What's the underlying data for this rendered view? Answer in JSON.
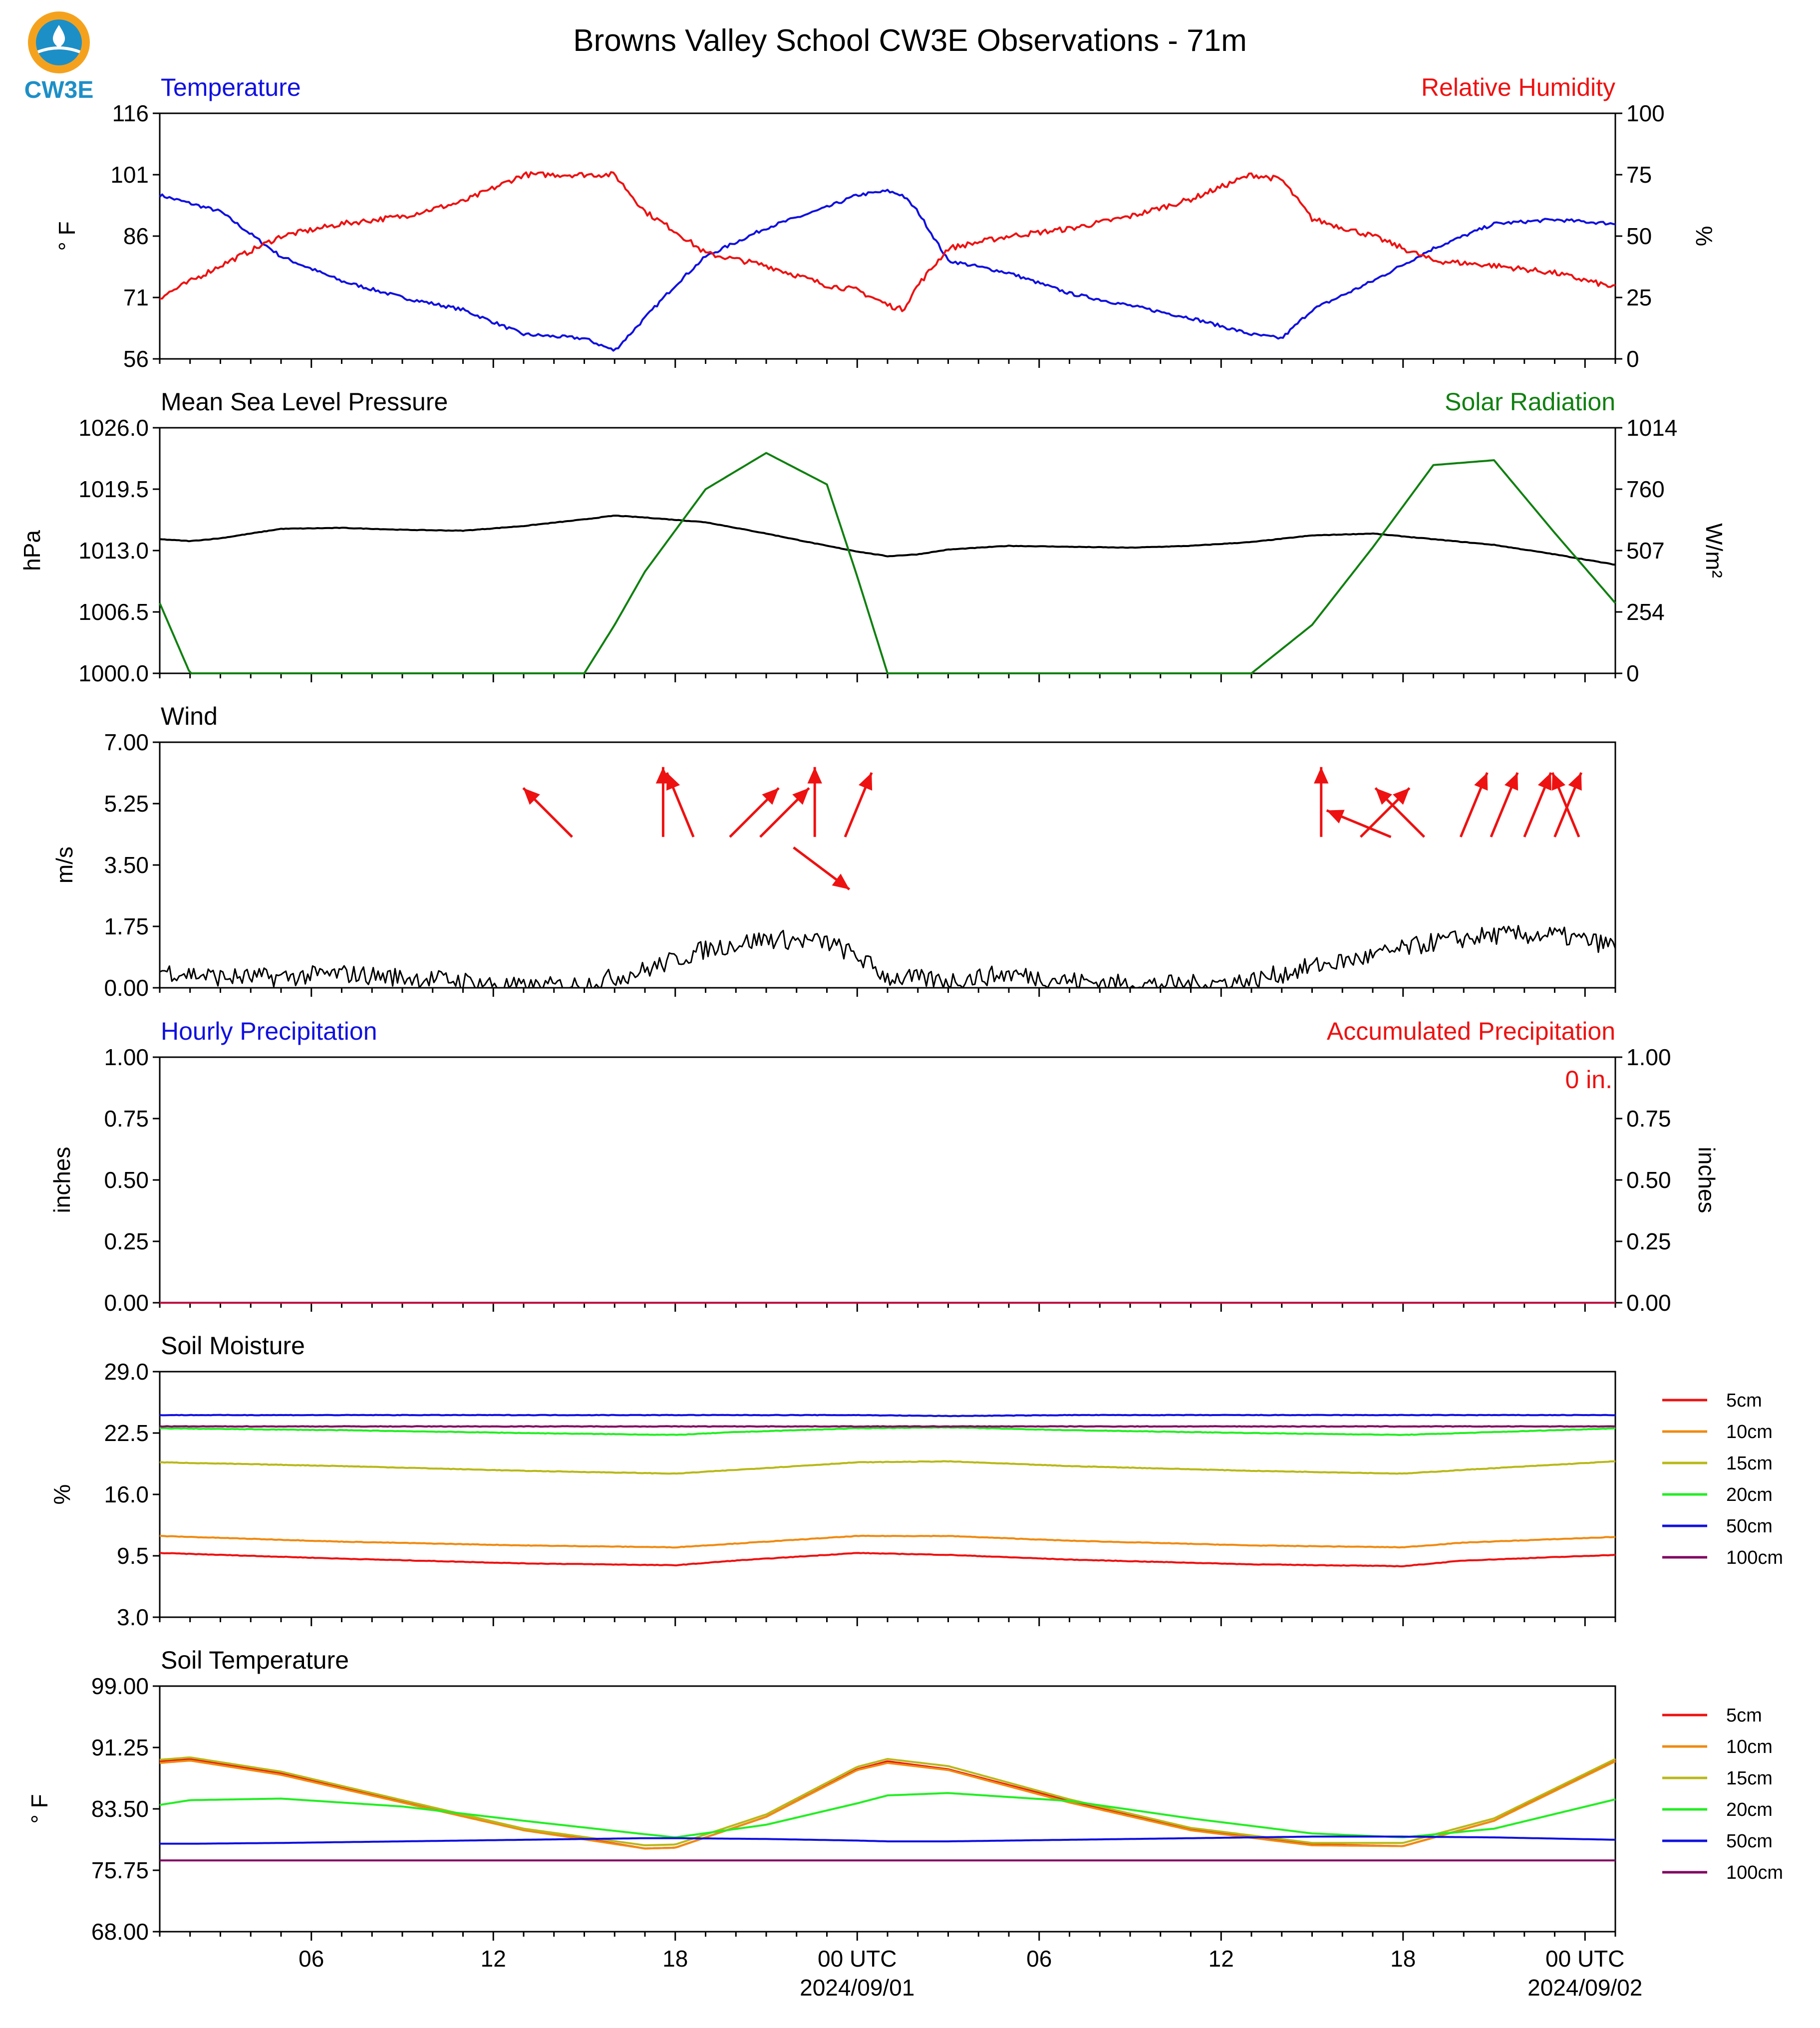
{
  "title": "Browns Valley School CW3E Observations - 71m",
  "logo_text": "CW3E",
  "colors": {
    "temp": "#1010e0",
    "rh": "#ee1111",
    "pressure": "#000000",
    "solar": "#108010",
    "wind": "#000000",
    "arrow": "#ee1111",
    "accum_label": "#ee1111"
  },
  "x_axis": {
    "range_hours": [
      0,
      48
    ],
    "tick_labels": [
      {
        "h": 5,
        "label": "06"
      },
      {
        "h": 11,
        "label": "12"
      },
      {
        "h": 17,
        "label": "18"
      },
      {
        "h": 23,
        "label": "00 UTC",
        "sub": "2024/09/01"
      },
      {
        "h": 29,
        "label": "06"
      },
      {
        "h": 35,
        "label": "12"
      },
      {
        "h": 41,
        "label": "18"
      },
      {
        "h": 47,
        "label": "00 UTC",
        "sub": "2024/09/02"
      }
    ]
  },
  "panels": {
    "temp_rh": {
      "left_title": "Temperature",
      "right_title": "Relative Humidity",
      "left_unit": "° F",
      "right_unit": "%",
      "left_ticks": [
        "116",
        "101",
        "86",
        "71",
        "56"
      ],
      "right_ticks": [
        "100",
        "75",
        "50",
        "25",
        "0"
      ]
    },
    "pressure_solar": {
      "left_title": "Mean Sea Level Pressure",
      "right_title": "Solar Radiation",
      "left_unit": "hPa",
      "right_unit": "W/m²",
      "left_ticks": [
        "1026.0",
        "1019.5",
        "1013.0",
        "1006.5",
        "1000.0"
      ],
      "right_ticks": [
        "1014",
        "760",
        "507",
        "254",
        "0"
      ]
    },
    "wind": {
      "left_title": "Wind",
      "left_unit": "m/s",
      "left_ticks": [
        "7.00",
        "5.25",
        "3.50",
        "1.75",
        "0.00"
      ]
    },
    "precip": {
      "left_title": "Hourly Precipitation",
      "right_title": "Accumulated Precipitation",
      "left_unit": "inches",
      "right_unit": "inches",
      "left_ticks": [
        "1.00",
        "0.75",
        "0.50",
        "0.25",
        "0.00"
      ],
      "right_ticks": [
        "1.00",
        "0.75",
        "0.50",
        "0.25",
        "0.00"
      ],
      "accum_text": "0 in."
    },
    "soil_moisture": {
      "left_title": "Soil Moisture",
      "left_unit": "%",
      "left_ticks": [
        "29.0",
        "22.5",
        "16.0",
        "9.5",
        "3.0"
      ]
    },
    "soil_temp": {
      "left_title": "Soil Temperature",
      "left_unit": "° F",
      "left_ticks": [
        "99.00",
        "91.25",
        "83.50",
        "75.75",
        "68.00"
      ]
    }
  },
  "legend_soil_moisture": [
    {
      "label": "5cm",
      "color": "#ee1111"
    },
    {
      "label": "10cm",
      "color": "#f08a10"
    },
    {
      "label": "15cm",
      "color": "#b8b818"
    },
    {
      "label": "20cm",
      "color": "#22ee22"
    },
    {
      "label": "50cm",
      "color": "#1010e0"
    },
    {
      "label": "100cm",
      "color": "#800060"
    }
  ],
  "legend_soil_temp": [
    {
      "label": "5cm",
      "color": "#ee1111"
    },
    {
      "label": "10cm",
      "color": "#f08a10"
    },
    {
      "label": "15cm",
      "color": "#b8b818"
    },
    {
      "label": "20cm",
      "color": "#22ee22"
    },
    {
      "label": "50cm",
      "color": "#1010e0"
    },
    {
      "label": "100cm",
      "color": "#800060"
    }
  ],
  "chart_data": [
    {
      "type": "line",
      "title": "Temperature / Relative Humidity",
      "xlabel": "",
      "x": [
        0,
        2,
        4,
        6,
        8,
        10,
        12,
        14,
        15,
        16,
        17,
        18,
        20,
        22,
        23,
        24,
        24.5,
        25,
        26,
        28,
        30,
        32,
        34,
        36,
        37,
        38,
        40,
        42,
        44,
        46,
        48
      ],
      "series": [
        {
          "name": "Temperature",
          "axis": "left",
          "units": "° F",
          "ylim": [
            56,
            116
          ],
          "values": [
            96,
            92,
            81,
            75,
            71,
            68,
            62,
            61,
            58,
            66,
            74,
            81,
            88,
            93,
            96,
            97,
            96,
            92,
            80,
            77,
            72,
            69,
            66,
            62,
            61,
            68,
            75,
            83,
            89,
            90,
            89
          ]
        },
        {
          "name": "Relative Humidity",
          "axis": "right",
          "units": "%",
          "ylim": [
            0,
            100
          ],
          "values": [
            25,
            38,
            50,
            55,
            58,
            64,
            75,
            75,
            75,
            60,
            52,
            43,
            38,
            30,
            28,
            22,
            20,
            30,
            45,
            50,
            53,
            58,
            65,
            75,
            73,
            57,
            50,
            40,
            38,
            35,
            29
          ]
        }
      ]
    },
    {
      "type": "line",
      "title": "Mean Sea Level Pressure / Solar Radiation",
      "xlabel": "",
      "x": [
        0,
        1,
        2,
        4,
        6,
        8,
        10,
        12,
        14,
        15,
        16,
        18,
        20,
        22,
        23,
        24,
        25,
        26,
        28,
        30,
        32,
        34,
        36,
        38,
        40,
        42,
        44,
        46,
        48
      ],
      "series": [
        {
          "name": "Mean Sea Level Pressure",
          "axis": "left",
          "units": "hPa",
          "ylim": [
            1000,
            1026
          ],
          "values": [
            1014.2,
            1014.0,
            1014.3,
            1015.3,
            1015.4,
            1015.2,
            1015.1,
            1015.6,
            1016.3,
            1016.7,
            1016.5,
            1016.0,
            1014.8,
            1013.5,
            1012.9,
            1012.4,
            1012.6,
            1013.1,
            1013.5,
            1013.4,
            1013.3,
            1013.5,
            1013.9,
            1014.6,
            1014.8,
            1014.2,
            1013.6,
            1012.6,
            1011.5
          ]
        },
        {
          "name": "Solar Radiation",
          "axis": "right",
          "units": "W/m²",
          "ylim": [
            0,
            1014
          ],
          "values": [
            290,
            0,
            0,
            0,
            0,
            0,
            0,
            0,
            0,
            200,
            420,
            760,
            910,
            780,
            400,
            0,
            0,
            0,
            0,
            0,
            0,
            0,
            0,
            200,
            520,
            860,
            880,
            580,
            290
          ]
        }
      ]
    },
    {
      "type": "line",
      "title": "Wind",
      "xlabel": "",
      "ylim": [
        0,
        7
      ],
      "x": [
        0,
        2,
        4,
        6,
        8,
        10,
        12,
        14,
        16,
        18,
        20,
        22,
        23,
        24,
        26,
        28,
        30,
        32,
        34,
        36,
        38,
        40,
        42,
        44,
        46,
        48
      ],
      "series": [
        {
          "name": "Wind speed",
          "units": "m/s",
          "values": [
            0.5,
            0.3,
            0.3,
            0.4,
            0.3,
            0.2,
            0,
            0.1,
            0.5,
            1.1,
            1.4,
            1.3,
            0.9,
            0.3,
            0.2,
            0.4,
            0.2,
            0.1,
            0.1,
            0.2,
            0.6,
            0.9,
            1.3,
            1.5,
            1.5,
            1.2
          ]
        }
      ],
      "arrows_note": "wind direction vectors",
      "arrows": [
        {
          "x": 13.6,
          "y": 4.3,
          "dir": "NW"
        },
        {
          "x": 16.6,
          "y": 4.3,
          "dir": "N"
        },
        {
          "x": 17.6,
          "y": 4.3,
          "dir": "NNW"
        },
        {
          "x": 18.8,
          "y": 4.3,
          "dir": "NE"
        },
        {
          "x": 19.8,
          "y": 4.3,
          "dir": "NE"
        },
        {
          "x": 21.6,
          "y": 4.3,
          "dir": "N"
        },
        {
          "x": 22.6,
          "y": 4.3,
          "dir": "NNE"
        },
        {
          "x": 20.9,
          "y": 4.0,
          "dir": "SE"
        },
        {
          "x": 38.3,
          "y": 4.3,
          "dir": "N"
        },
        {
          "x": 39.6,
          "y": 4.3,
          "dir": "NE"
        },
        {
          "x": 40.6,
          "y": 4.3,
          "dir": "WNW"
        },
        {
          "x": 41.7,
          "y": 4.3,
          "dir": "NW"
        },
        {
          "x": 42.9,
          "y": 4.3,
          "dir": "NNE"
        },
        {
          "x": 43.9,
          "y": 4.3,
          "dir": "NNE"
        },
        {
          "x": 45.0,
          "y": 4.3,
          "dir": "NNE"
        },
        {
          "x": 46.0,
          "y": 4.3,
          "dir": "NNE"
        },
        {
          "x": 46.8,
          "y": 4.3,
          "dir": "NNW"
        }
      ]
    },
    {
      "type": "line",
      "title": "Hourly / Accumulated Precipitation",
      "xlabel": "",
      "ylim": [
        0,
        1
      ],
      "x": [
        0,
        48
      ],
      "series": [
        {
          "name": "Hourly Precipitation",
          "values": [
            0,
            0
          ]
        },
        {
          "name": "Accumulated Precipitation",
          "values": [
            0,
            0
          ]
        }
      ]
    },
    {
      "type": "line",
      "title": "Soil Moisture",
      "xlabel": "",
      "ylim": [
        3,
        29
      ],
      "x": [
        0,
        6,
        12,
        17,
        19,
        23,
        26,
        30,
        36,
        41,
        43,
        48
      ],
      "series": [
        {
          "name": "5cm",
          "values": [
            9.8,
            9.2,
            8.7,
            8.5,
            9.0,
            9.8,
            9.6,
            9.1,
            8.6,
            8.4,
            9.0,
            9.6
          ]
        },
        {
          "name": "10cm",
          "values": [
            11.6,
            11.0,
            10.6,
            10.4,
            10.8,
            11.6,
            11.6,
            11.1,
            10.6,
            10.4,
            10.9,
            11.5
          ]
        },
        {
          "name": "15cm",
          "values": [
            19.4,
            19.0,
            18.5,
            18.2,
            18.6,
            19.4,
            19.5,
            19.0,
            18.5,
            18.2,
            18.6,
            19.5
          ]
        },
        {
          "name": "20cm",
          "values": [
            23.0,
            22.8,
            22.5,
            22.3,
            22.6,
            23.0,
            23.1,
            22.8,
            22.5,
            22.3,
            22.5,
            23.0
          ]
        },
        {
          "name": "50cm",
          "values": [
            24.4,
            24.4,
            24.4,
            24.4,
            24.4,
            24.4,
            24.3,
            24.4,
            24.4,
            24.4,
            24.4,
            24.4
          ]
        },
        {
          "name": "100cm",
          "values": [
            23.2,
            23.2,
            23.2,
            23.2,
            23.2,
            23.2,
            23.2,
            23.2,
            23.2,
            23.2,
            23.2,
            23.2
          ]
        }
      ]
    },
    {
      "type": "line",
      "title": "Soil Temperature",
      "xlabel": "",
      "ylim": [
        68,
        99
      ],
      "x": [
        0,
        1,
        4,
        8,
        12,
        16,
        17,
        20,
        23,
        24,
        26,
        30,
        34,
        38,
        41,
        44,
        48
      ],
      "series": [
        {
          "name": "5cm",
          "values": [
            89.5,
            89.8,
            88.0,
            84.5,
            81.0,
            78.5,
            78.6,
            82.5,
            88.5,
            89.5,
            88.5,
            84.5,
            81.0,
            79.0,
            78.8,
            82.0,
            89.7
          ]
        },
        {
          "name": "10cm",
          "values": [
            89.3,
            89.6,
            87.8,
            84.3,
            80.8,
            78.5,
            78.6,
            82.5,
            88.4,
            89.3,
            88.4,
            84.3,
            80.8,
            78.9,
            78.8,
            82.0,
            89.5
          ]
        },
        {
          "name": "15cm",
          "values": [
            89.7,
            90.0,
            88.2,
            84.6,
            81.0,
            78.9,
            79.0,
            82.8,
            88.8,
            89.8,
            88.9,
            84.7,
            81.1,
            79.2,
            79.2,
            82.3,
            89.8
          ]
        },
        {
          "name": "20cm",
          "values": [
            84.0,
            84.6,
            84.8,
            83.8,
            82.0,
            80.3,
            79.9,
            81.5,
            84.2,
            85.2,
            85.5,
            84.5,
            82.3,
            80.4,
            79.9,
            81.0,
            84.7
          ]
        },
        {
          "name": "50cm",
          "values": [
            79.1,
            79.1,
            79.2,
            79.4,
            79.6,
            79.8,
            79.8,
            79.7,
            79.5,
            79.4,
            79.4,
            79.6,
            79.8,
            80.0,
            80.0,
            79.9,
            79.6
          ]
        },
        {
          "name": "100cm",
          "values": [
            77.0,
            77.0,
            77.0,
            77.0,
            77.0,
            77.0,
            77.0,
            77.0,
            77.0,
            77.0,
            77.0,
            77.0,
            77.0,
            77.0,
            77.0,
            77.0,
            77.0
          ]
        }
      ]
    }
  ]
}
